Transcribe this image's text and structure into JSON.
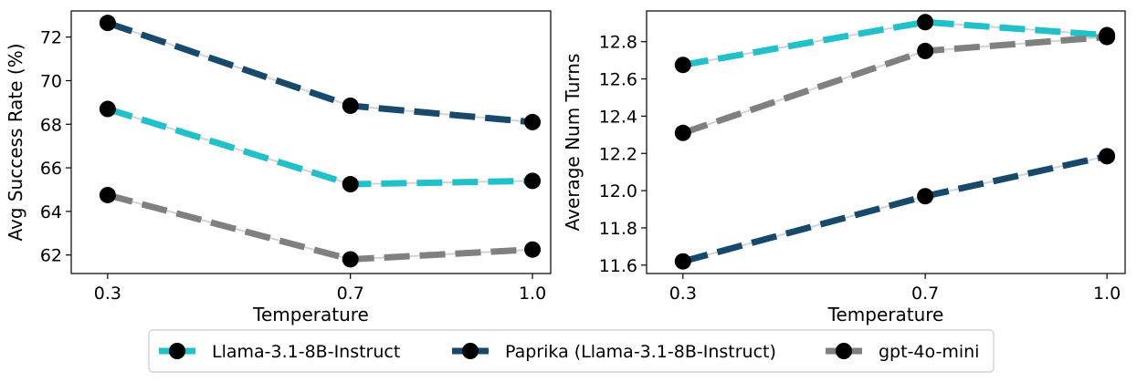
{
  "legend": {
    "entries": [
      {
        "label": "Llama-3.1-8B-Instruct",
        "color": "#22c0c8"
      },
      {
        "label": "Paprika (Llama-3.1-8B-Instruct)",
        "color": "#16496b"
      },
      {
        "label": "gpt-4o-mini",
        "color": "#808080"
      }
    ],
    "placement": "bottom-center"
  },
  "chart_data": [
    {
      "type": "line",
      "title": "",
      "xlabel": "Temperature",
      "ylabel": "Avg Success Rate (%)",
      "x": [
        0.3,
        0.7,
        1.0
      ],
      "x_tick_labels": [
        "0.3",
        "0.7",
        "1.0"
      ],
      "y_ticks": [
        62,
        64,
        66,
        68,
        70,
        72
      ],
      "xlim": [
        0.24,
        1.03
      ],
      "ylim": [
        61.15,
        73.2
      ],
      "grid": false,
      "series": [
        {
          "name": "Llama-3.1-8B-Instruct",
          "color": "#22c0c8",
          "values": [
            68.7,
            65.25,
            65.4
          ]
        },
        {
          "name": "Paprika (Llama-3.1-8B-Instruct)",
          "color": "#16496b",
          "values": [
            72.65,
            68.85,
            68.1
          ]
        },
        {
          "name": "gpt-4o-mini",
          "color": "#808080",
          "values": [
            64.75,
            61.8,
            62.25
          ]
        }
      ]
    },
    {
      "type": "line",
      "title": "",
      "xlabel": "Temperature",
      "ylabel": "Average Num Turns",
      "x": [
        0.3,
        0.7,
        1.0
      ],
      "x_tick_labels": [
        "0.3",
        "0.7",
        "1.0"
      ],
      "y_ticks": [
        11.6,
        11.8,
        12.0,
        12.2,
        12.4,
        12.6,
        12.8
      ],
      "y_tick_labels": [
        "11.6",
        "11.8",
        "12.0",
        "12.2",
        "12.4",
        "12.6",
        "12.8"
      ],
      "xlim": [
        0.24,
        1.03
      ],
      "ylim": [
        11.555,
        12.965
      ],
      "grid": false,
      "series": [
        {
          "name": "Llama-3.1-8B-Instruct",
          "color": "#22c0c8",
          "values": [
            12.675,
            12.905,
            12.835
          ]
        },
        {
          "name": "Paprika (Llama-3.1-8B-Instruct)",
          "color": "#16496b",
          "values": [
            11.62,
            11.97,
            12.185
          ]
        },
        {
          "name": "gpt-4o-mini",
          "color": "#808080",
          "values": [
            12.31,
            12.75,
            12.825
          ]
        }
      ]
    }
  ]
}
